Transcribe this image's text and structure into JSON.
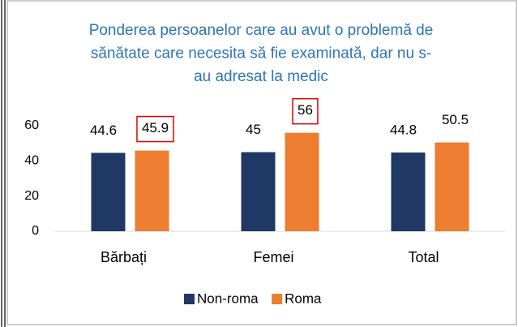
{
  "chart_data": {
    "type": "bar",
    "title": [
      "Ponderea persoanelor care au avut o problemă de",
      "sănătate care necesita să fie examinată, dar nu s-",
      "au adresat la medic"
    ],
    "categories": [
      "Bărbați",
      "Femei",
      "Total"
    ],
    "series": [
      {
        "name": "Non-roma",
        "color": "#203864",
        "values": [
          44.6,
          45,
          44.8
        ],
        "highlight": [
          false,
          false,
          false
        ]
      },
      {
        "name": "Roma",
        "color": "#ed7d31",
        "values": [
          45.9,
          56,
          50.5
        ],
        "highlight": [
          true,
          true,
          false
        ]
      }
    ],
    "ylim": [
      0,
      60
    ],
    "yticks": [
      0,
      20,
      40,
      60
    ],
    "grid": false,
    "legend": "bottom"
  }
}
